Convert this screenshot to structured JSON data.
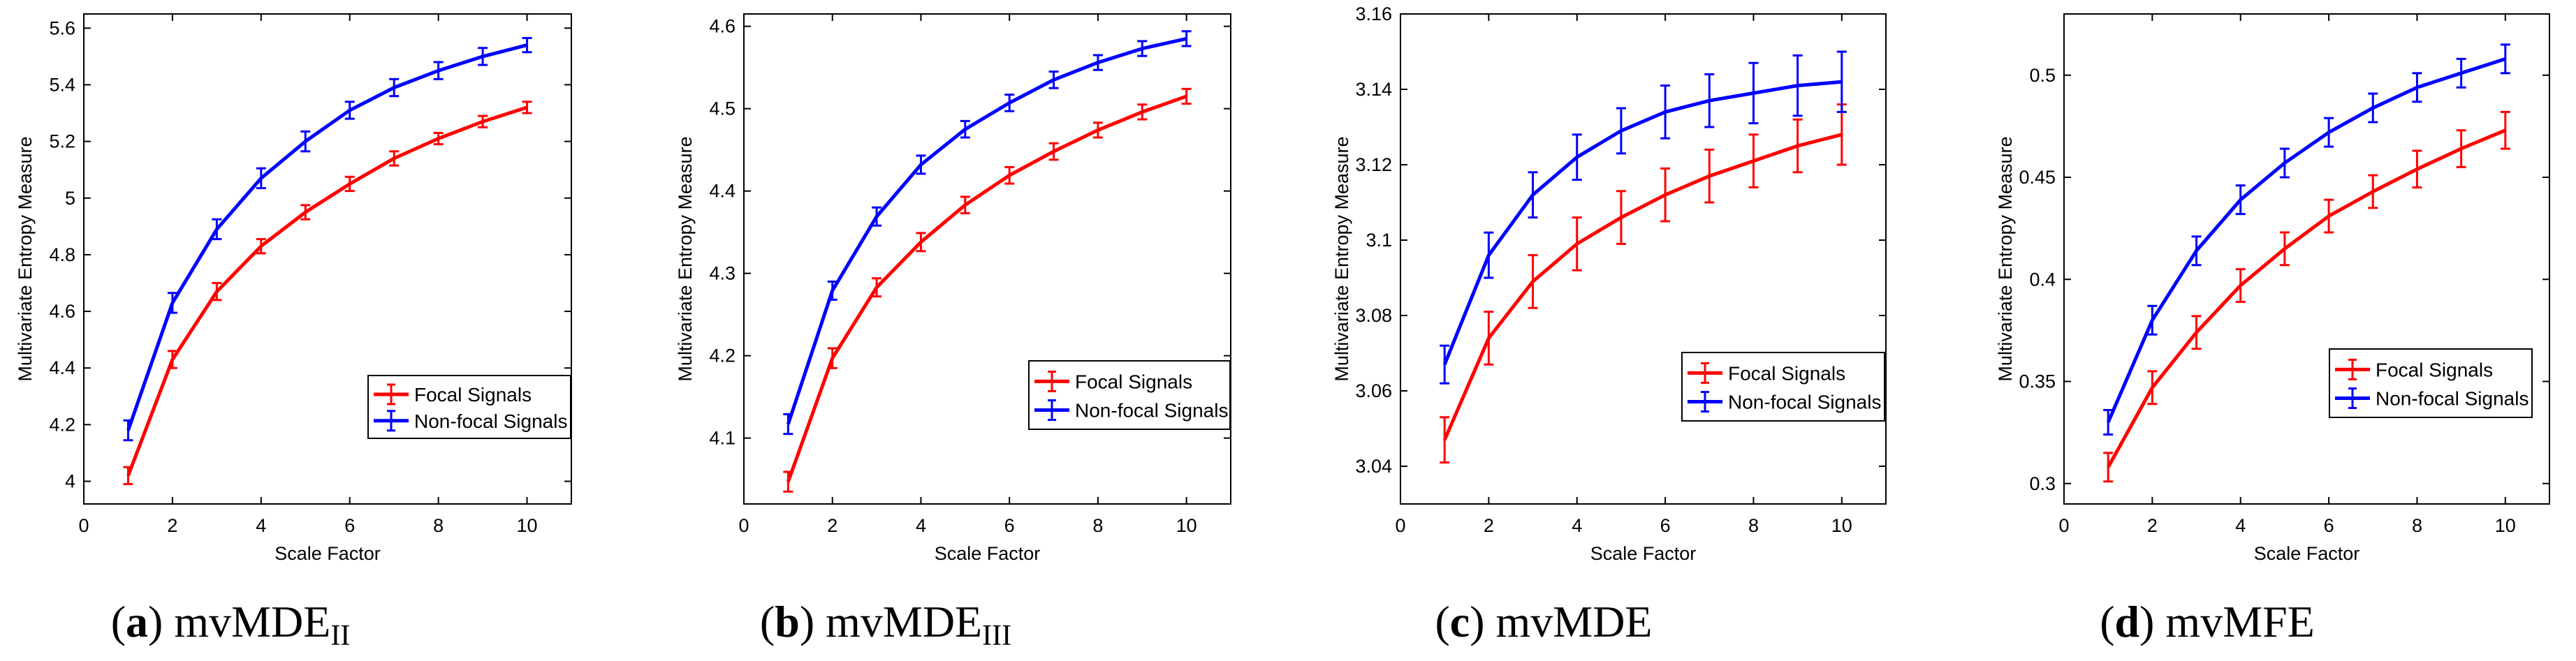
{
  "chart_data": [
    {
      "type": "line",
      "caption_letter": "a",
      "caption_main": "mvMDE",
      "caption_sub": "II",
      "xlabel": "Scale Factor",
      "ylabel": "Multivariate Entropy Measure",
      "xlim": [
        0,
        11
      ],
      "ylim": [
        3.92,
        5.65
      ],
      "xticks": [
        0,
        2,
        4,
        6,
        8,
        10
      ],
      "xtick_labels": [
        "0",
        "2",
        "4",
        "6",
        "8",
        "10"
      ],
      "yticks": [
        4,
        4.2,
        4.4,
        4.6,
        4.8,
        5,
        5.2,
        5.4,
        5.6
      ],
      "ytick_labels": [
        "4",
        "4.2",
        "4.4",
        "4.6",
        "4.8",
        "5",
        "5.2",
        "5.4",
        "5.6"
      ],
      "x": [
        1,
        2,
        3,
        4,
        5,
        6,
        7,
        8,
        9,
        10
      ],
      "legend_position": "lower-right",
      "series": [
        {
          "name": "Focal Signals",
          "color": "#ff0000",
          "values": [
            4.02,
            4.43,
            4.67,
            4.83,
            4.95,
            5.05,
            5.14,
            5.21,
            5.27,
            5.32
          ],
          "errors": [
            0.03,
            0.03,
            0.03,
            0.025,
            0.025,
            0.025,
            0.025,
            0.02,
            0.02,
            0.02
          ]
        },
        {
          "name": "Non-focal Signals",
          "color": "#0000ff",
          "values": [
            4.18,
            4.63,
            4.89,
            5.07,
            5.2,
            5.31,
            5.39,
            5.45,
            5.5,
            5.54
          ],
          "errors": [
            0.035,
            0.035,
            0.035,
            0.035,
            0.035,
            0.03,
            0.03,
            0.03,
            0.03,
            0.025
          ]
        }
      ]
    },
    {
      "type": "line",
      "caption_letter": "b",
      "caption_main": "mvMDE",
      "caption_sub": "III",
      "xlabel": "Scale Factor",
      "ylabel": "Multivariate Entropy Measure",
      "xlim": [
        0,
        11
      ],
      "ylim": [
        4.02,
        4.615
      ],
      "xticks": [
        0,
        2,
        4,
        6,
        8,
        10
      ],
      "xtick_labels": [
        "0",
        "2",
        "4",
        "6",
        "8",
        "10"
      ],
      "yticks": [
        4.1,
        4.2,
        4.3,
        4.4,
        4.5,
        4.6
      ],
      "ytick_labels": [
        "4.1",
        "4.2",
        "4.3",
        "4.4",
        "4.5",
        "4.6"
      ],
      "x": [
        1,
        2,
        3,
        4,
        5,
        6,
        7,
        8,
        9,
        10
      ],
      "legend_position": "lower-right",
      "series": [
        {
          "name": "Focal Signals",
          "color": "#ff0000",
          "values": [
            4.047,
            4.197,
            4.283,
            4.338,
            4.383,
            4.419,
            4.448,
            4.474,
            4.496,
            4.515
          ],
          "errors": [
            0.012,
            0.012,
            0.011,
            0.011,
            0.01,
            0.01,
            0.01,
            0.009,
            0.009,
            0.009
          ]
        },
        {
          "name": "Non-focal Signals",
          "color": "#0000ff",
          "values": [
            4.117,
            4.279,
            4.369,
            4.432,
            4.475,
            4.507,
            4.535,
            4.556,
            4.573,
            4.585
          ],
          "errors": [
            0.012,
            0.011,
            0.011,
            0.011,
            0.01,
            0.01,
            0.01,
            0.009,
            0.009,
            0.009
          ]
        }
      ]
    },
    {
      "type": "line",
      "caption_letter": "c",
      "caption_main": "mvMDE",
      "caption_sub": "",
      "xlabel": "Scale Factor",
      "ylabel": "Multivariate Entropy Measure",
      "xlim": [
        0,
        11
      ],
      "ylim": [
        3.03,
        3.16
      ],
      "xticks": [
        0,
        2,
        4,
        6,
        8,
        10
      ],
      "xtick_labels": [
        "0",
        "2",
        "4",
        "6",
        "8",
        "10"
      ],
      "yticks": [
        3.04,
        3.06,
        3.08,
        3.1,
        3.12,
        3.14,
        3.16
      ],
      "ytick_labels": [
        "3.04",
        "3.06",
        "3.08",
        "3.1",
        "3.12",
        "3.14",
        "3.16"
      ],
      "x": [
        1,
        2,
        3,
        4,
        5,
        6,
        7,
        8,
        9,
        10
      ],
      "legend_position": "lower-right",
      "series": [
        {
          "name": "Focal Signals",
          "color": "#ff0000",
          "values": [
            3.047,
            3.074,
            3.089,
            3.099,
            3.106,
            3.112,
            3.117,
            3.121,
            3.125,
            3.128
          ],
          "errors": [
            0.006,
            0.007,
            0.007,
            0.007,
            0.007,
            0.007,
            0.007,
            0.007,
            0.007,
            0.008
          ]
        },
        {
          "name": "Non-focal Signals",
          "color": "#0000ff",
          "values": [
            3.067,
            3.096,
            3.112,
            3.122,
            3.129,
            3.134,
            3.137,
            3.139,
            3.141,
            3.142
          ],
          "errors": [
            0.005,
            0.006,
            0.006,
            0.006,
            0.006,
            0.007,
            0.007,
            0.008,
            0.008,
            0.008
          ]
        }
      ]
    },
    {
      "type": "line",
      "caption_letter": "d",
      "caption_main": "mvMFE",
      "caption_sub": "",
      "xlabel": "Scale Factor",
      "ylabel": "Multivariate Entropy Measure",
      "xlim": [
        0,
        11
      ],
      "ylim": [
        0.29,
        0.53
      ],
      "xticks": [
        0,
        2,
        4,
        6,
        8,
        10
      ],
      "xtick_labels": [
        "0",
        "2",
        "4",
        "6",
        "8",
        "10"
      ],
      "yticks": [
        0.3,
        0.35,
        0.4,
        0.45,
        0.5
      ],
      "ytick_labels": [
        "0.3",
        "0.35",
        "0.4",
        "0.45",
        "0.5"
      ],
      "x": [
        1,
        2,
        3,
        4,
        5,
        6,
        7,
        8,
        9,
        10
      ],
      "legend_position": "lower-right",
      "series": [
        {
          "name": "Focal Signals",
          "color": "#ff0000",
          "values": [
            0.308,
            0.347,
            0.374,
            0.397,
            0.415,
            0.431,
            0.443,
            0.454,
            0.464,
            0.473
          ],
          "errors": [
            0.007,
            0.008,
            0.008,
            0.008,
            0.008,
            0.008,
            0.008,
            0.009,
            0.009,
            0.009
          ]
        },
        {
          "name": "Non-focal Signals",
          "color": "#0000ff",
          "values": [
            0.33,
            0.38,
            0.414,
            0.439,
            0.457,
            0.472,
            0.484,
            0.494,
            0.501,
            0.508
          ],
          "errors": [
            0.006,
            0.007,
            0.007,
            0.007,
            0.007,
            0.007,
            0.007,
            0.007,
            0.007,
            0.007
          ]
        }
      ]
    }
  ]
}
